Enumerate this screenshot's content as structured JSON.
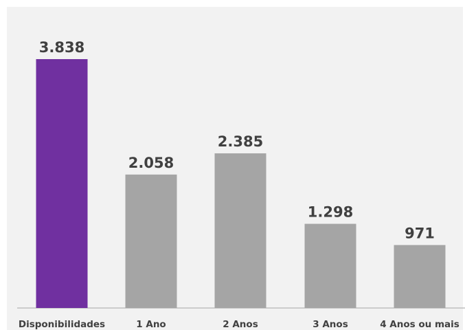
{
  "chart_data": {
    "type": "bar",
    "categories": [
      "Disponibilidades",
      "1 Ano",
      "2 Anos",
      "3 Anos",
      "4 Anos ou mais"
    ],
    "values": [
      3838,
      2058,
      2385,
      1298,
      971
    ],
    "value_labels": [
      "3.838",
      "2.058",
      "2.385",
      "1.298",
      "971"
    ],
    "colors": [
      "#7030a0",
      "#a5a5a5",
      "#a5a5a5",
      "#a5a5a5",
      "#a5a5a5"
    ],
    "ylim": [
      0,
      4000
    ],
    "title": "",
    "xlabel": "",
    "ylabel": "",
    "grid": false,
    "legend": "none"
  },
  "colors": {
    "background": "#f2f2f2",
    "axis": "#bfbfbf",
    "text": "#404040",
    "accent": "#7030a0",
    "bar_default": "#a5a5a5"
  }
}
